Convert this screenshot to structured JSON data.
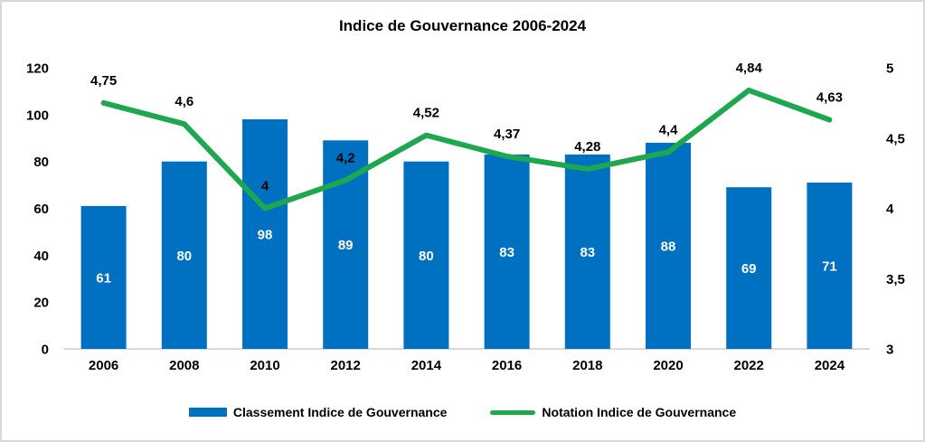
{
  "title": "Indice de Gouvernance 2006-2024",
  "colors": {
    "bar": "#0070C0",
    "line": "#1FA750",
    "axis_line": "#D9D9D9",
    "bar_label": "#FFFFFF",
    "text": "#000000",
    "border": "#D9D9D9"
  },
  "chart_data": {
    "type": "bar",
    "subtype": "bar-and-line-combo",
    "title": "Indice de Gouvernance 2006-2024",
    "categories": [
      "2006",
      "2008",
      "2010",
      "2012",
      "2014",
      "2016",
      "2018",
      "2020",
      "2022",
      "2024"
    ],
    "series": [
      {
        "name": "Classement Indice de Gouvernance",
        "type": "bar",
        "axis": "left",
        "values": [
          61,
          80,
          98,
          89,
          80,
          83,
          83,
          88,
          69,
          71
        ],
        "labels": [
          "61",
          "80",
          "98",
          "89",
          "80",
          "83",
          "83",
          "88",
          "69",
          "71"
        ]
      },
      {
        "name": "Notation Indice de Gouvernance",
        "type": "line",
        "axis": "right",
        "values": [
          4.75,
          4.6,
          4.0,
          4.2,
          4.52,
          4.37,
          4.28,
          4.4,
          4.84,
          4.63
        ],
        "labels": [
          "4,75",
          "4,6",
          "4",
          "4,2",
          "4,52",
          "4,37",
          "4,28",
          "4,4",
          "4,84",
          "4,63"
        ]
      }
    ],
    "left_axis": {
      "min": 0,
      "max": 120,
      "ticks": [
        0,
        20,
        40,
        60,
        80,
        100,
        120
      ],
      "tick_labels": [
        "0",
        "20",
        "40",
        "60",
        "80",
        "100",
        "120"
      ]
    },
    "right_axis": {
      "min": 3,
      "max": 5,
      "ticks": [
        3,
        3.5,
        4,
        4.5,
        5
      ],
      "tick_labels": [
        "3",
        "3,5",
        "4",
        "4,5",
        "5"
      ]
    },
    "grid": false,
    "legend_position": "bottom"
  },
  "legend": {
    "items": [
      {
        "label": "Classement Indice de Gouvernance",
        "swatch": "bar"
      },
      {
        "label": "Notation Indice de Gouvernance",
        "swatch": "line"
      }
    ]
  }
}
